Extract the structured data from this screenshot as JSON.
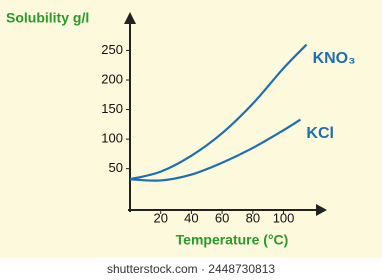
{
  "chart_data": {
    "type": "line",
    "y_label": "Solubility g/l",
    "x_label": "Temperature (°C)",
    "xlim": [
      0,
      127
    ],
    "xticks": [
      20,
      40,
      60,
      80,
      100
    ],
    "ylim": [
      -20,
      310
    ],
    "yticks": [
      50,
      100,
      150,
      200,
      250
    ],
    "grid": false,
    "series": [
      {
        "name": "KNO₃",
        "color": "#1f6db4",
        "x": [
          0,
          20,
          40,
          60,
          80,
          100,
          115
        ],
        "values": [
          32,
          45,
          72,
          110,
          160,
          220,
          260
        ]
      },
      {
        "name": "KCl",
        "color": "#1f6db4",
        "x": [
          0,
          20,
          40,
          60,
          80,
          100,
          111
        ],
        "values": [
          32,
          30,
          40,
          60,
          85,
          115,
          133
        ]
      }
    ],
    "axis_color": "#222222",
    "label_color": "#2a9a2a",
    "watermark": "shutterstock.com · 2448730813"
  }
}
